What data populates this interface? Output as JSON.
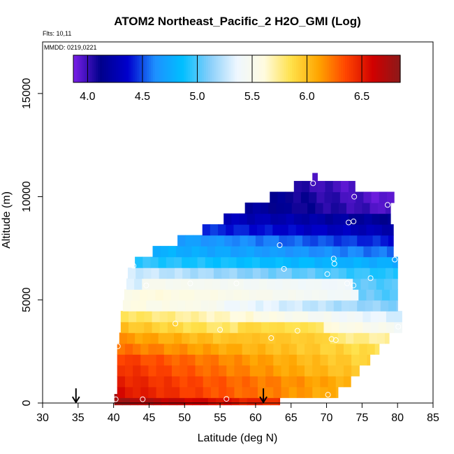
{
  "chart_data": {
    "type": "heatmap",
    "title": "ATOM2 Northeast_Pacific_2 H2O_GMI (Log)",
    "flights_label": "Flts: 10,11",
    "dates_label": "MMDD: 0219,0221",
    "xlabel": "Latitude (deg N)",
    "ylabel": "Altitude (m)",
    "xlim": [
      30,
      85
    ],
    "ylim": [
      0,
      17500
    ],
    "xticks": [
      30,
      35,
      40,
      45,
      50,
      55,
      60,
      65,
      70,
      75,
      80,
      85
    ],
    "yticks": [
      0,
      5000,
      10000,
      15000
    ],
    "colorbar": {
      "range": [
        3.87,
        6.85
      ],
      "ticks": [
        4.0,
        4.5,
        5.0,
        5.5,
        6.0,
        6.5
      ],
      "tick_labels": [
        "4.0",
        "4.5",
        "5.0",
        "5.5",
        "6.0",
        "6.5"
      ],
      "colors": [
        "#7b1fe8",
        "#00008b",
        "#0000cd",
        "#1e90ff",
        "#00bfff",
        "#87cefa",
        "#eef7ff",
        "#fffbe0",
        "#ffe14a",
        "#ffa500",
        "#ff4500",
        "#d00000",
        "#8b1a1a"
      ]
    },
    "rows": [
      {
        "alt": 175,
        "lat_start": 40.1,
        "lat_end": 63.4,
        "v0": 6.78,
        "v1": 6.42
      },
      {
        "alt": 525,
        "lat_start": 40.5,
        "lat_end": 71.6,
        "v0": 6.55,
        "v1": 6.05
      },
      {
        "alt": 1050,
        "lat_start": 40.5,
        "lat_end": 73.4,
        "v0": 6.5,
        "v1": 6.05
      },
      {
        "alt": 1575,
        "lat_start": 40.5,
        "lat_end": 74.6,
        "v0": 6.45,
        "v1": 5.95
      },
      {
        "alt": 2100,
        "lat_start": 40.5,
        "lat_end": 76.1,
        "v0": 6.4,
        "v1": 5.9
      },
      {
        "alt": 2625,
        "lat_start": 40.5,
        "lat_end": 77.4,
        "v0": 6.25,
        "v1": 5.85
      },
      {
        "alt": 3150,
        "lat_start": 40.8,
        "lat_end": 78.8,
        "v0": 6.15,
        "v1": 5.7
      },
      {
        "alt": 3675,
        "lat_start": 41.0,
        "lat_end": 80.6,
        "v0": 6.0,
        "v1": 5.45
      },
      {
        "alt": 4200,
        "lat_start": 41.0,
        "lat_end": 80.6,
        "v0": 5.85,
        "v1": 5.3
      },
      {
        "alt": 4725,
        "lat_start": 41.3,
        "lat_end": 80.0,
        "v0": 5.6,
        "v1": 5.1
      },
      {
        "alt": 5250,
        "lat_start": 41.5,
        "lat_end": 80.0,
        "v0": 5.55,
        "v1": 5.0
      },
      {
        "alt": 5775,
        "lat_start": 41.8,
        "lat_end": 80.0,
        "v0": 5.3,
        "v1": 5.0
      },
      {
        "alt": 6300,
        "lat_start": 42.0,
        "lat_end": 80.0,
        "v0": 5.3,
        "v1": 4.9
      },
      {
        "alt": 6825,
        "lat_start": 43.0,
        "lat_end": 80.0,
        "v0": 4.95,
        "v1": 4.75
      },
      {
        "alt": 7350,
        "lat_start": 45.5,
        "lat_end": 79.4,
        "v0": 4.8,
        "v1": 4.55
      },
      {
        "alt": 7875,
        "lat_start": 49.0,
        "lat_end": 79.4,
        "v0": 4.7,
        "v1": 4.4
      },
      {
        "alt": 8400,
        "lat_start": 52.5,
        "lat_end": 79.4,
        "v0": 4.45,
        "v1": 4.25
      },
      {
        "alt": 8925,
        "lat_start": 55.5,
        "lat_end": 79.0,
        "v0": 4.3,
        "v1": 4.15
      },
      {
        "alt": 9450,
        "lat_start": 58.5,
        "lat_end": 79.0,
        "v0": 4.2,
        "v1": 3.95
      },
      {
        "alt": 9975,
        "lat_start": 62.0,
        "lat_end": 79.5,
        "v0": 4.15,
        "v1": 3.9
      },
      {
        "alt": 10500,
        "lat_start": 65.4,
        "lat_end": 74.0,
        "v0": 4.05,
        "v1": 3.95
      },
      {
        "alt": 10950,
        "lat_start": 68.0,
        "lat_end": 68.7,
        "v0": 4.0,
        "v1": 4.0
      }
    ],
    "bands": [
      {
        "alt_min": 5100,
        "alt_max": 6000,
        "lat_min": 44,
        "lat_max": 74,
        "value": 5.72
      },
      {
        "alt_min": 4500,
        "alt_max": 5200,
        "lat_min": 47,
        "lat_max": 54,
        "value": 5.58
      },
      {
        "alt_min": 3000,
        "alt_max": 3800,
        "lat_min": 57,
        "lat_max": 70,
        "value": 6.05
      }
    ],
    "points": [
      {
        "lat": 40.3,
        "alt": 180
      },
      {
        "lat": 44.1,
        "alt": 180
      },
      {
        "lat": 55.9,
        "alt": 200
      },
      {
        "lat": 70.2,
        "alt": 400
      },
      {
        "lat": 40.6,
        "alt": 2750
      },
      {
        "lat": 48.7,
        "alt": 3850
      },
      {
        "lat": 55.0,
        "alt": 3550
      },
      {
        "lat": 62.2,
        "alt": 3150
      },
      {
        "lat": 65.9,
        "alt": 3500
      },
      {
        "lat": 70.7,
        "alt": 3100
      },
      {
        "lat": 71.3,
        "alt": 3050
      },
      {
        "lat": 80.1,
        "alt": 3700
      },
      {
        "lat": 44.6,
        "alt": 5700
      },
      {
        "lat": 50.8,
        "alt": 5800
      },
      {
        "lat": 57.3,
        "alt": 5800
      },
      {
        "lat": 64.0,
        "alt": 6500
      },
      {
        "lat": 70.1,
        "alt": 6250
      },
      {
        "lat": 72.9,
        "alt": 5800
      },
      {
        "lat": 73.8,
        "alt": 5700
      },
      {
        "lat": 76.2,
        "alt": 6050
      },
      {
        "lat": 42.8,
        "alt": 6650
      },
      {
        "lat": 63.4,
        "alt": 7650
      },
      {
        "lat": 71.0,
        "alt": 7000
      },
      {
        "lat": 71.1,
        "alt": 6750
      },
      {
        "lat": 79.6,
        "alt": 6950
      },
      {
        "lat": 73.1,
        "alt": 8750
      },
      {
        "lat": 73.8,
        "alt": 8800
      },
      {
        "lat": 78.6,
        "alt": 9600
      },
      {
        "lat": 73.9,
        "alt": 10000
      },
      {
        "lat": 68.1,
        "alt": 10650
      }
    ],
    "flight_markers": [
      {
        "name": "flight-start-arrow",
        "lat": 34.7
      },
      {
        "name": "flight-end-arrow",
        "lat": 61.1
      }
    ]
  }
}
